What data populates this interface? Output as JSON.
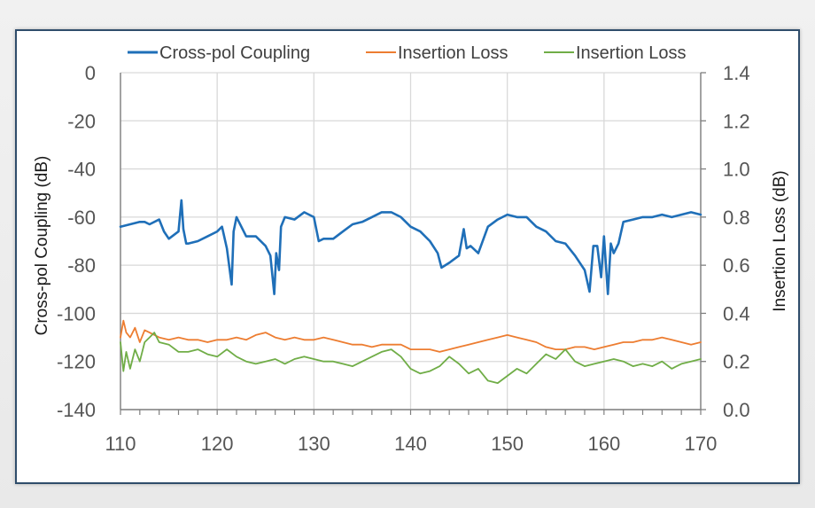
{
  "chart_data": {
    "type": "line",
    "xlim": [
      110,
      170
    ],
    "xticks": [
      "110",
      "120",
      "130",
      "140",
      "150",
      "160",
      "170"
    ],
    "ylabel_left": "Cross-pol Coupling (dB)",
    "ylim_left": [
      -140,
      0
    ],
    "yticks_left": [
      "0",
      "-20",
      "-40",
      "-60",
      "-80",
      "-100",
      "-120",
      "-140"
    ],
    "ylabel_right": "Insertion Loss (dB)",
    "ylim_right": [
      0,
      1.4
    ],
    "yticks_right": [
      "1.4",
      "1.2",
      "1.0",
      "0.8",
      "0.6",
      "0.4",
      "0.2",
      "0.0"
    ],
    "grid": true,
    "legend_position": "top",
    "series": [
      {
        "name": "Cross-pol Coupling",
        "axis": "left",
        "color": "#1f6fb8",
        "x": [
          110,
          111,
          112,
          112.5,
          113,
          114,
          114.5,
          115,
          116,
          116.3,
          116.5,
          116.8,
          117,
          118,
          119,
          120,
          120.5,
          121,
          121.5,
          121.7,
          122,
          123,
          124,
          125,
          125.5,
          125.9,
          126.1,
          126.4,
          126.6,
          127,
          128,
          129,
          130,
          130.5,
          131,
          132,
          133,
          134,
          135,
          136,
          137,
          138,
          139,
          140,
          141,
          142,
          142.8,
          143.2,
          144,
          145,
          145.5,
          145.8,
          146.2,
          147,
          148,
          149,
          150,
          151,
          152,
          153,
          154,
          155,
          156,
          157,
          158,
          158.5,
          158.9,
          159.3,
          159.7,
          160,
          160.4,
          160.7,
          161,
          161.5,
          162,
          163,
          164,
          165,
          166,
          167,
          168,
          169,
          170
        ],
        "y": [
          -64,
          -63,
          -62,
          -62,
          -63,
          -61,
          -66,
          -69,
          -66,
          -53,
          -65,
          -71,
          -71,
          -70,
          -68,
          -66,
          -64,
          -73,
          -88,
          -66,
          -60,
          -68,
          -68,
          -72,
          -76,
          -92,
          -75,
          -82,
          -64,
          -60,
          -61,
          -58,
          -60,
          -70,
          -69,
          -69,
          -66,
          -63,
          -62,
          -60,
          -58,
          -58,
          -60,
          -64,
          -66,
          -70,
          -75,
          -81,
          -79,
          -76,
          -65,
          -73,
          -72,
          -75,
          -64,
          -61,
          -59,
          -60,
          -60,
          -64,
          -66,
          -70,
          -71,
          -76,
          -82,
          -91,
          -72,
          -72,
          -85,
          -68,
          -92,
          -71,
          -75,
          -71,
          -62,
          -61,
          -60,
          -60,
          -59,
          -60,
          -59,
          -58,
          -59
        ]
      },
      {
        "name": "Insertion Loss",
        "axis": "right",
        "color": "#ed7d31",
        "x": [
          110,
          110.3,
          110.6,
          111,
          111.5,
          112,
          112.5,
          113,
          114,
          115,
          116,
          117,
          118,
          119,
          120,
          121,
          122,
          123,
          124,
          125,
          126,
          127,
          128,
          129,
          130,
          131,
          132,
          133,
          134,
          135,
          136,
          137,
          138,
          139,
          140,
          141,
          142,
          143,
          144,
          145,
          146,
          147,
          148,
          149,
          150,
          151,
          152,
          153,
          154,
          155,
          156,
          157,
          158,
          159,
          160,
          161,
          162,
          163,
          164,
          165,
          166,
          167,
          168,
          169,
          170
        ],
        "y": [
          0.3,
          0.37,
          0.32,
          0.3,
          0.34,
          0.28,
          0.33,
          0.32,
          0.3,
          0.29,
          0.3,
          0.29,
          0.29,
          0.28,
          0.29,
          0.29,
          0.3,
          0.29,
          0.31,
          0.32,
          0.3,
          0.29,
          0.3,
          0.29,
          0.29,
          0.3,
          0.29,
          0.28,
          0.27,
          0.27,
          0.26,
          0.27,
          0.27,
          0.27,
          0.25,
          0.25,
          0.25,
          0.24,
          0.25,
          0.26,
          0.27,
          0.28,
          0.29,
          0.3,
          0.31,
          0.3,
          0.29,
          0.28,
          0.26,
          0.25,
          0.25,
          0.26,
          0.26,
          0.25,
          0.26,
          0.27,
          0.28,
          0.28,
          0.29,
          0.29,
          0.3,
          0.29,
          0.28,
          0.27,
          0.28
        ]
      },
      {
        "name": "Insertion Loss",
        "axis": "right",
        "color": "#70ad47",
        "x": [
          110,
          110.3,
          110.6,
          111,
          111.5,
          112,
          112.5,
          113,
          113.5,
          114,
          115,
          116,
          117,
          118,
          119,
          120,
          121,
          122,
          123,
          124,
          125,
          126,
          127,
          128,
          129,
          130,
          131,
          132,
          133,
          134,
          135,
          136,
          137,
          138,
          139,
          140,
          141,
          142,
          143,
          144,
          145,
          146,
          147,
          148,
          149,
          150,
          151,
          152,
          153,
          154,
          155,
          156,
          157,
          158,
          159,
          160,
          161,
          162,
          163,
          164,
          165,
          166,
          167,
          168,
          169,
          170
        ],
        "y": [
          0.28,
          0.16,
          0.24,
          0.17,
          0.25,
          0.2,
          0.28,
          0.3,
          0.32,
          0.28,
          0.27,
          0.24,
          0.24,
          0.25,
          0.23,
          0.22,
          0.25,
          0.22,
          0.2,
          0.19,
          0.2,
          0.21,
          0.19,
          0.21,
          0.22,
          0.21,
          0.2,
          0.2,
          0.19,
          0.18,
          0.2,
          0.22,
          0.24,
          0.25,
          0.22,
          0.17,
          0.15,
          0.16,
          0.18,
          0.22,
          0.19,
          0.15,
          0.17,
          0.12,
          0.11,
          0.14,
          0.17,
          0.15,
          0.19,
          0.23,
          0.21,
          0.25,
          0.2,
          0.18,
          0.19,
          0.2,
          0.21,
          0.2,
          0.18,
          0.19,
          0.18,
          0.2,
          0.17,
          0.19,
          0.2,
          0.21
        ]
      }
    ]
  }
}
